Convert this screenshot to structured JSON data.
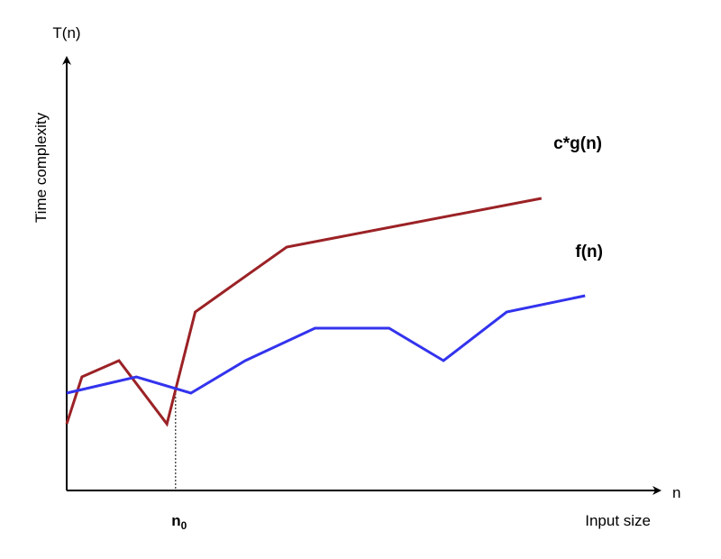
{
  "chart_data": {
    "type": "line",
    "xaxis_symbol": "n",
    "yaxis_symbol": "T(n)",
    "xlabel": "Input size",
    "ylabel": "Time complexity",
    "n0_label": {
      "base": "n",
      "sub": "0"
    },
    "n0_x": 5.0,
    "xlim": [
      0,
      24
    ],
    "ylim": [
      0,
      20
    ],
    "grid": false,
    "series": [
      {
        "name": "c*g(n)",
        "color": "#9b2226",
        "x": [
          0,
          0.7,
          2.4,
          4.6,
          5.9,
          10.1,
          21.8
        ],
        "y": [
          4.1,
          7.0,
          8.0,
          4.1,
          11.0,
          15.0,
          18.0
        ]
      },
      {
        "name": "f(n)",
        "color": "#3333ee",
        "x": [
          0,
          3.2,
          5.7,
          8.2,
          11.4,
          14.8,
          17.3,
          20.2,
          23.8
        ],
        "y": [
          6.0,
          7.0,
          6.0,
          8.0,
          10.0,
          10.0,
          8.0,
          11.0,
          12.0
        ]
      }
    ]
  }
}
